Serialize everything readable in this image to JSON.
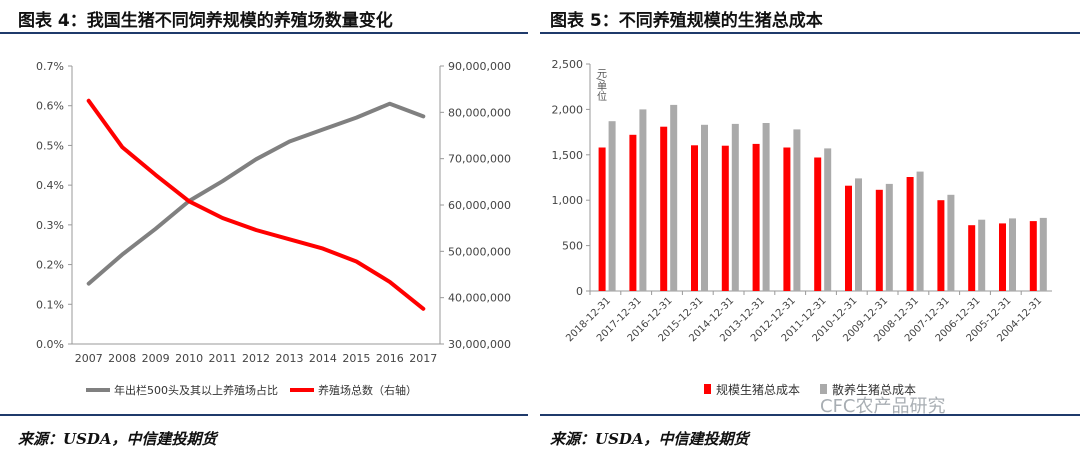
{
  "left": {
    "title": "图表 4：我国生猪不同饲养规模的养殖场数量变化",
    "source": "来源：USDA，中信建投期货"
  },
  "right": {
    "title": "图表 5：不同养殖规模的生猪总成本",
    "source": "来源：USDA，中信建投期货"
  },
  "watermark": "CFC农产品研究",
  "colors": {
    "gray": "#808080",
    "red": "#ff0000",
    "rule": "#1f3a6b"
  },
  "chart_data": [
    {
      "type": "line",
      "x": [
        "2007",
        "2008",
        "2009",
        "2010",
        "2011",
        "2012",
        "2013",
        "2014",
        "2015",
        "2016",
        "2017"
      ],
      "y_left_ticks": [
        "0.0%",
        "0.1%",
        "0.2%",
        "0.3%",
        "0.4%",
        "0.5%",
        "0.6%",
        "0.7%"
      ],
      "y_right_ticks": [
        "30,000,000",
        "40,000,000",
        "50,000,000",
        "60,000,000",
        "70,000,000",
        "80,000,000",
        "90,000,000"
      ],
      "ylim_left": [
        0,
        0.7
      ],
      "ylim_right": [
        30000000,
        90000000
      ],
      "series": [
        {
          "name": "年出栏500头及其以上养殖场占比",
          "axis": "left",
          "color": "#808080",
          "values": [
            0.152,
            0.225,
            0.29,
            0.36,
            0.41,
            0.465,
            0.51,
            0.54,
            0.57,
            0.605,
            0.573
          ]
        },
        {
          "name": "养殖场总数（右轴）",
          "axis": "right",
          "color": "#ff0000",
          "values": [
            82500000,
            72500000,
            66500000,
            60800000,
            57200000,
            54600000,
            52600000,
            50600000,
            47800000,
            43400000,
            37600000
          ]
        }
      ],
      "grid": false,
      "legend": "bottom"
    },
    {
      "type": "bar",
      "ylabel": "元/单位",
      "categories": [
        "2018-12-31",
        "2017-12-31",
        "2016-12-31",
        "2015-12-31",
        "2014-12-31",
        "2013-12-31",
        "2012-12-31",
        "2011-12-31",
        "2010-12-31",
        "2009-12-31",
        "2008-12-31",
        "2007-12-31",
        "2006-12-31",
        "2005-12-31",
        "2004-12-31"
      ],
      "y_ticks": [
        "0",
        "500",
        "1,000",
        "1,500",
        "2,000",
        "2,500"
      ],
      "ylim": [
        0,
        2500
      ],
      "series": [
        {
          "name": "规模生猪总成本",
          "color": "#ff0000",
          "values": [
            1580,
            1720,
            1810,
            1605,
            1600,
            1620,
            1580,
            1470,
            1160,
            1115,
            1255,
            1000,
            725,
            745,
            770
          ]
        },
        {
          "name": "散养生猪总成本",
          "color": "#aaaaaa",
          "values": [
            1870,
            2000,
            2050,
            1830,
            1840,
            1850,
            1780,
            1570,
            1240,
            1180,
            1315,
            1060,
            785,
            800,
            805
          ]
        }
      ],
      "grid": false,
      "legend": "bottom"
    }
  ]
}
